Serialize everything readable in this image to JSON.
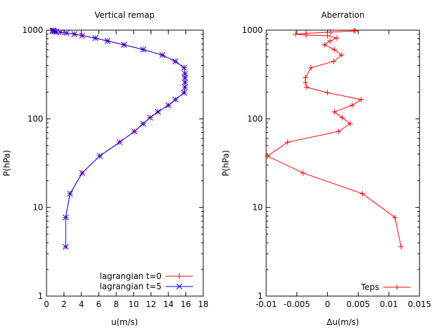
{
  "chart_data": [
    {
      "type": "line",
      "title": "Vertical remap",
      "xlabel": "u(m/s)",
      "ylabel": "P(hPa)",
      "xlim": [
        0,
        18
      ],
      "ylim": [
        1,
        1000
      ],
      "yscale": "log",
      "xticks": [
        0,
        2,
        4,
        6,
        8,
        10,
        12,
        14,
        16,
        18
      ],
      "xtick_labels": [
        "0",
        "2",
        "4",
        "6",
        "8",
        "10",
        "12",
        "14",
        "16",
        "18"
      ],
      "yticks": [
        1,
        10,
        100,
        1000
      ],
      "ytick_labels": [
        "1",
        "10",
        "100",
        "1000"
      ],
      "legend_position": "bottom-right",
      "series": [
        {
          "name": "lagrangian t=0",
          "color": "#ff0000",
          "marker": "plus",
          "points": [
            [
              2.2,
              3.6
            ],
            [
              2.2,
              7.7
            ],
            [
              2.7,
              14.3
            ],
            [
              4.1,
              24.5
            ],
            [
              6.1,
              38.0
            ],
            [
              8.4,
              54.5
            ],
            [
              10.1,
              72.0
            ],
            [
              11.1,
              88.0
            ],
            [
              11.9,
              103
            ],
            [
              12.8,
              120
            ],
            [
              14.0,
              142
            ],
            [
              14.8,
              165
            ],
            [
              15.8,
              197
            ],
            [
              15.9,
              227
            ],
            [
              15.9,
              258
            ],
            [
              15.9,
              290
            ],
            [
              15.9,
              322
            ],
            [
              15.8,
              377
            ],
            [
              14.8,
              444
            ],
            [
              13.3,
              523
            ],
            [
              11.1,
              605
            ],
            [
              8.9,
              683
            ],
            [
              7.0,
              755
            ],
            [
              5.6,
              815
            ],
            [
              4.1,
              868
            ],
            [
              3.2,
              903
            ],
            [
              2.3,
              928
            ],
            [
              1.6,
              945
            ],
            [
              1.1,
              958
            ],
            [
              0.9,
              970
            ],
            [
              0.7,
              980
            ],
            [
              0.7,
              986
            ],
            [
              0.8,
              990
            ]
          ]
        },
        {
          "name": "lagrangian t=5",
          "color": "#0000ff",
          "marker": "cross",
          "points": [
            [
              2.2,
              3.6
            ],
            [
              2.2,
              7.7
            ],
            [
              2.7,
              14.3
            ],
            [
              4.1,
              24.5
            ],
            [
              6.1,
              38.0
            ],
            [
              8.4,
              54.5
            ],
            [
              10.1,
              72.0
            ],
            [
              11.1,
              88.0
            ],
            [
              11.9,
              103
            ],
            [
              12.8,
              120
            ],
            [
              14.0,
              142
            ],
            [
              14.8,
              165
            ],
            [
              15.8,
              197
            ],
            [
              15.9,
              227
            ],
            [
              15.9,
              258
            ],
            [
              15.9,
              290
            ],
            [
              15.9,
              322
            ],
            [
              15.8,
              377
            ],
            [
              14.8,
              444
            ],
            [
              13.3,
              523
            ],
            [
              11.1,
              605
            ],
            [
              8.9,
              683
            ],
            [
              7.0,
              755
            ],
            [
              5.6,
              815
            ],
            [
              4.1,
              868
            ],
            [
              3.2,
              903
            ],
            [
              2.3,
              928
            ],
            [
              1.6,
              945
            ],
            [
              1.1,
              958
            ],
            [
              0.9,
              970
            ],
            [
              0.7,
              980
            ],
            [
              0.7,
              986
            ],
            [
              0.8,
              990
            ]
          ]
        }
      ]
    },
    {
      "type": "line",
      "title": "Aberration",
      "xlabel": "Δu(m/s)",
      "ylabel": "P(hPa)",
      "xlim": [
        -0.01,
        0.015
      ],
      "ylim": [
        1,
        1000
      ],
      "yscale": "log",
      "xticks": [
        -0.01,
        -0.005,
        0,
        0.005,
        0.01,
        0.015
      ],
      "xtick_labels": [
        "-0.01",
        "-0.005",
        "0",
        "0.005",
        "0.01",
        "0.015"
      ],
      "yticks": [
        1,
        10,
        100,
        1000
      ],
      "ytick_labels": [
        "1",
        "10",
        "100",
        "1000"
      ],
      "legend_position": "bottom-right",
      "series": [
        {
          "name": "Teps",
          "color": "#ff0000",
          "marker": "plus",
          "points": [
            [
              0.012,
              3.6
            ],
            [
              0.011,
              7.7
            ],
            [
              0.0057,
              14.3
            ],
            [
              -0.004,
              24.5
            ],
            [
              -0.0098,
              38.0
            ],
            [
              -0.0065,
              54.5
            ],
            [
              0.0018,
              72.0
            ],
            [
              0.0037,
              88.0
            ],
            [
              0.0024,
              103
            ],
            [
              0.0011,
              120
            ],
            [
              0.004,
              142
            ],
            [
              0.0055,
              165
            ],
            [
              0.0,
              197
            ],
            [
              -0.0034,
              227
            ],
            [
              -0.0036,
              258
            ],
            [
              -0.0036,
              290
            ],
            [
              -0.0027,
              377
            ],
            [
              0.001,
              444
            ],
            [
              0.0023,
              523
            ],
            [
              0.0011,
              605
            ],
            [
              -0.0005,
              683
            ],
            [
              0.0004,
              755
            ],
            [
              0.0015,
              815
            ],
            [
              0.0,
              868
            ],
            [
              -0.0035,
              880
            ],
            [
              -0.0052,
              903
            ],
            [
              -0.0035,
              920
            ],
            [
              0.0005,
              950
            ],
            [
              0.0045,
              980
            ],
            [
              0.0043,
              992
            ]
          ]
        }
      ]
    }
  ]
}
